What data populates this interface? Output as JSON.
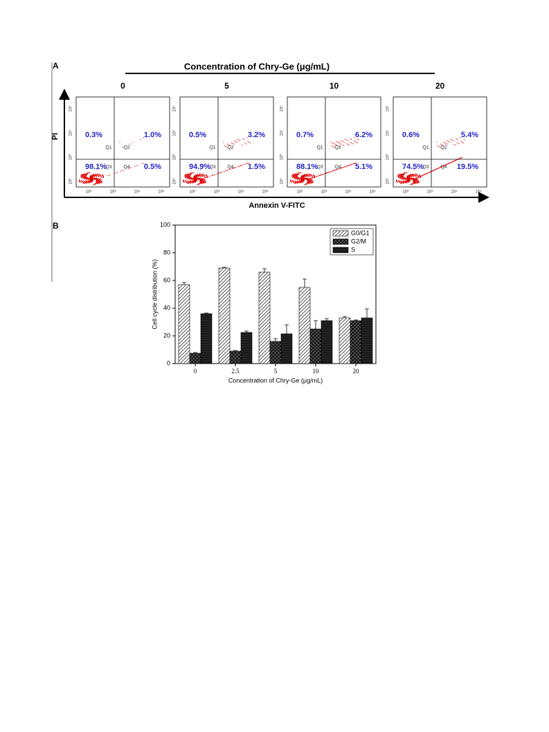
{
  "panel_a": {
    "label": "A",
    "title": "Concentration of Chry-Ge (μg/mL)",
    "x_label": "Annexin V-FITC",
    "y_label": "PI",
    "gate_labels": [
      "Q1",
      "Q2",
      "Q3",
      "Q4"
    ],
    "axis_ticks": [
      "10²",
      "10³",
      "10⁴",
      "10⁵"
    ],
    "plots": [
      {
        "concentration": "0",
        "q1": "0.3%",
        "q2": "1.0%",
        "q3": "98.1%",
        "q4": "0.5%"
      },
      {
        "concentration": "5",
        "q1": "0.5%",
        "q2": "3.2%",
        "q3": "94.9%",
        "q4": "1.5%"
      },
      {
        "concentration": "10",
        "q1": "0.7%",
        "q2": "6.2%",
        "q3": "88.1%",
        "q4": "5.1%"
      },
      {
        "concentration": "20",
        "q1": "0.6%",
        "q2": "5.4%",
        "q3": "74.5%",
        "q4": "19.5%"
      }
    ]
  },
  "panel_b_label": "B",
  "chart_data": {
    "type": "bar",
    "x_label": "Concentration of Chry-Ge (μg/mL)",
    "y_label": "Cell cycle distribution (%)",
    "categories": [
      "0",
      "2.5",
      "5",
      "10",
      "20"
    ],
    "ylim": [
      0,
      100
    ],
    "yticks": [
      0,
      20,
      40,
      60,
      80,
      100
    ],
    "legend": "top-right",
    "series": [
      {
        "name": "G0/G1",
        "color": "#bbbbbb",
        "pattern": "diagonal",
        "values": [
          57,
          69,
          66,
          55,
          33
        ],
        "errors": [
          1.5,
          0.5,
          2.5,
          6,
          1
        ]
      },
      {
        "name": "G2/M",
        "color": "#555555",
        "pattern": "crosshatch",
        "values": [
          7.5,
          9,
          16,
          25,
          31
        ],
        "errors": [
          0.5,
          0.5,
          2,
          6,
          0.5
        ]
      },
      {
        "name": "S",
        "color": "#333333",
        "pattern": "horizontal",
        "values": [
          36,
          22.5,
          21.5,
          31,
          33
        ],
        "errors": [
          0.5,
          1,
          6.5,
          1.5,
          6.5
        ]
      }
    ]
  }
}
